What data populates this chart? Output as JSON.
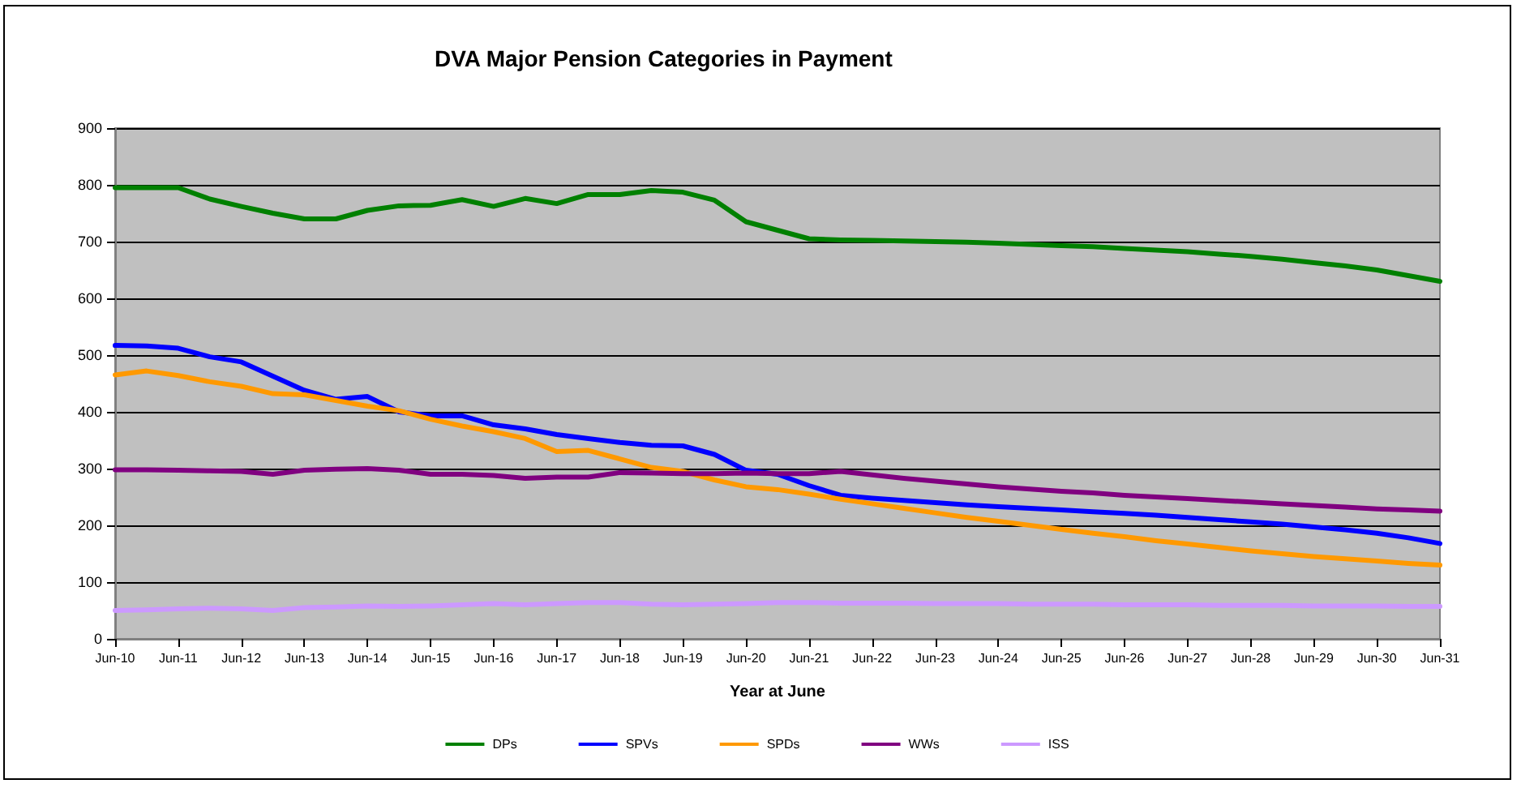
{
  "chart_data": {
    "type": "line",
    "title": "DVA Major Pension Categories in Payment",
    "xlabel": "Year at June",
    "categories": [
      "Jun-10",
      null,
      "Jun-11",
      null,
      "Jun-12",
      null,
      "Jun-13",
      null,
      "Jun-14",
      null,
      "Jun-15",
      null,
      "Jun-16",
      null,
      "Jun-17",
      null,
      "Jun-18",
      null,
      "Jun-19",
      null,
      "Jun-20",
      null,
      "Jun-21",
      null,
      "Jun-22",
      null,
      "Jun-23",
      null,
      "Jun-24",
      null,
      "Jun-25",
      null,
      "Jun-26",
      null,
      "Jun-27",
      null,
      "Jun-28",
      null,
      "Jun-29",
      null,
      "Jun-30",
      null,
      "Jun-31"
    ],
    "series": [
      {
        "name": "DPs",
        "color": "#008000",
        "values": [
          795,
          795,
          795,
          775,
          762,
          750,
          740,
          740,
          755,
          763,
          764,
          774,
          762,
          776,
          767,
          783,
          783,
          790,
          787,
          773,
          735,
          720,
          705,
          703,
          702,
          701,
          700,
          699,
          697,
          695,
          693,
          691,
          688,
          685,
          682,
          678,
          674,
          669,
          663,
          657,
          650,
          640,
          630
        ]
      },
      {
        "name": "SPVs",
        "color": "#0000ff",
        "values": [
          517,
          516,
          512,
          497,
          488,
          463,
          438,
          422,
          427,
          400,
          393,
          393,
          377,
          370,
          360,
          353,
          346,
          341,
          340,
          325,
          297,
          290,
          270,
          253,
          248,
          244,
          240,
          236,
          233,
          230,
          227,
          224,
          221,
          218,
          214,
          210,
          206,
          202,
          197,
          192,
          186,
          178,
          168
        ]
      },
      {
        "name": "SPDs",
        "color": "#ff9900",
        "values": [
          465,
          472,
          464,
          453,
          445,
          432,
          430,
          420,
          410,
          402,
          387,
          375,
          365,
          353,
          330,
          332,
          317,
          302,
          295,
          280,
          268,
          263,
          255,
          246,
          238,
          230,
          222,
          214,
          207,
          200,
          193,
          186,
          180,
          173,
          167,
          161,
          155,
          150,
          145,
          141,
          137,
          133,
          130
        ]
      },
      {
        "name": "WWs",
        "color": "#800080",
        "values": [
          298,
          298,
          297,
          296,
          295,
          290,
          297,
          299,
          300,
          297,
          290,
          290,
          288,
          283,
          285,
          285,
          293,
          292,
          291,
          291,
          292,
          291,
          291,
          295,
          289,
          283,
          278,
          273,
          268,
          264,
          260,
          257,
          253,
          250,
          247,
          244,
          241,
          238,
          235,
          232,
          229,
          227,
          225
        ]
      },
      {
        "name": "ISS",
        "color": "#cc99ff",
        "values": [
          50,
          51,
          53,
          54,
          53,
          50,
          55,
          56,
          58,
          57,
          58,
          60,
          62,
          60,
          62,
          64,
          64,
          61,
          60,
          61,
          62,
          64,
          64,
          63,
          63,
          63,
          62,
          62,
          62,
          61,
          61,
          61,
          60,
          60,
          60,
          59,
          59,
          59,
          58,
          58,
          58,
          57,
          57
        ]
      }
    ],
    "ylim": [
      0,
      900
    ],
    "yticks": [
      0,
      100,
      200,
      300,
      400,
      500,
      600,
      700,
      800,
      900
    ],
    "grid": "y",
    "legend": "bottom",
    "marker": "none",
    "line_style": "solid"
  }
}
